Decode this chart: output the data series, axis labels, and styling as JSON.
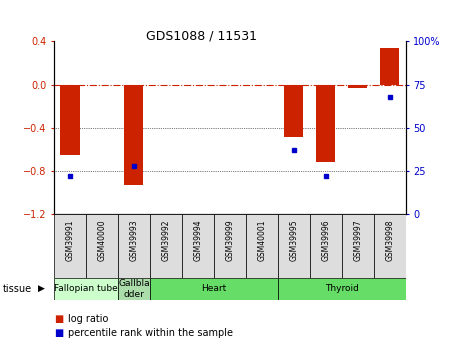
{
  "title": "GDS1088 / 11531",
  "samples": [
    "GSM39991",
    "GSM40000",
    "GSM39993",
    "GSM39992",
    "GSM39994",
    "GSM39999",
    "GSM40001",
    "GSM39995",
    "GSM39996",
    "GSM39997",
    "GSM39998"
  ],
  "log_ratio": [
    -0.65,
    0.0,
    -0.93,
    0.0,
    0.0,
    0.0,
    0.0,
    -0.49,
    -0.72,
    -0.03,
    0.34
  ],
  "percentile_rank": [
    22,
    null,
    28,
    null,
    null,
    null,
    null,
    37,
    22,
    null,
    68
  ],
  "ylim_left": [
    -1.2,
    0.4
  ],
  "ylim_right": [
    0,
    100
  ],
  "bar_color": "#cc2200",
  "dot_color": "#0000cc",
  "zero_line_color": "#cc2200",
  "grid_color": "#333333",
  "tgroups": [
    {
      "label": "Fallopian tube",
      "start": 0,
      "end": 2,
      "color": "#ccffcc"
    },
    {
      "label": "Gallbla\ndder",
      "start": 2,
      "end": 3,
      "color": "#aaddaa"
    },
    {
      "label": "Heart",
      "start": 3,
      "end": 7,
      "color": "#66dd66"
    },
    {
      "label": "Thyroid",
      "start": 7,
      "end": 11,
      "color": "#66dd66"
    }
  ],
  "legend_red": "log ratio",
  "legend_blue": "percentile rank within the sample",
  "tissue_label": "tissue"
}
